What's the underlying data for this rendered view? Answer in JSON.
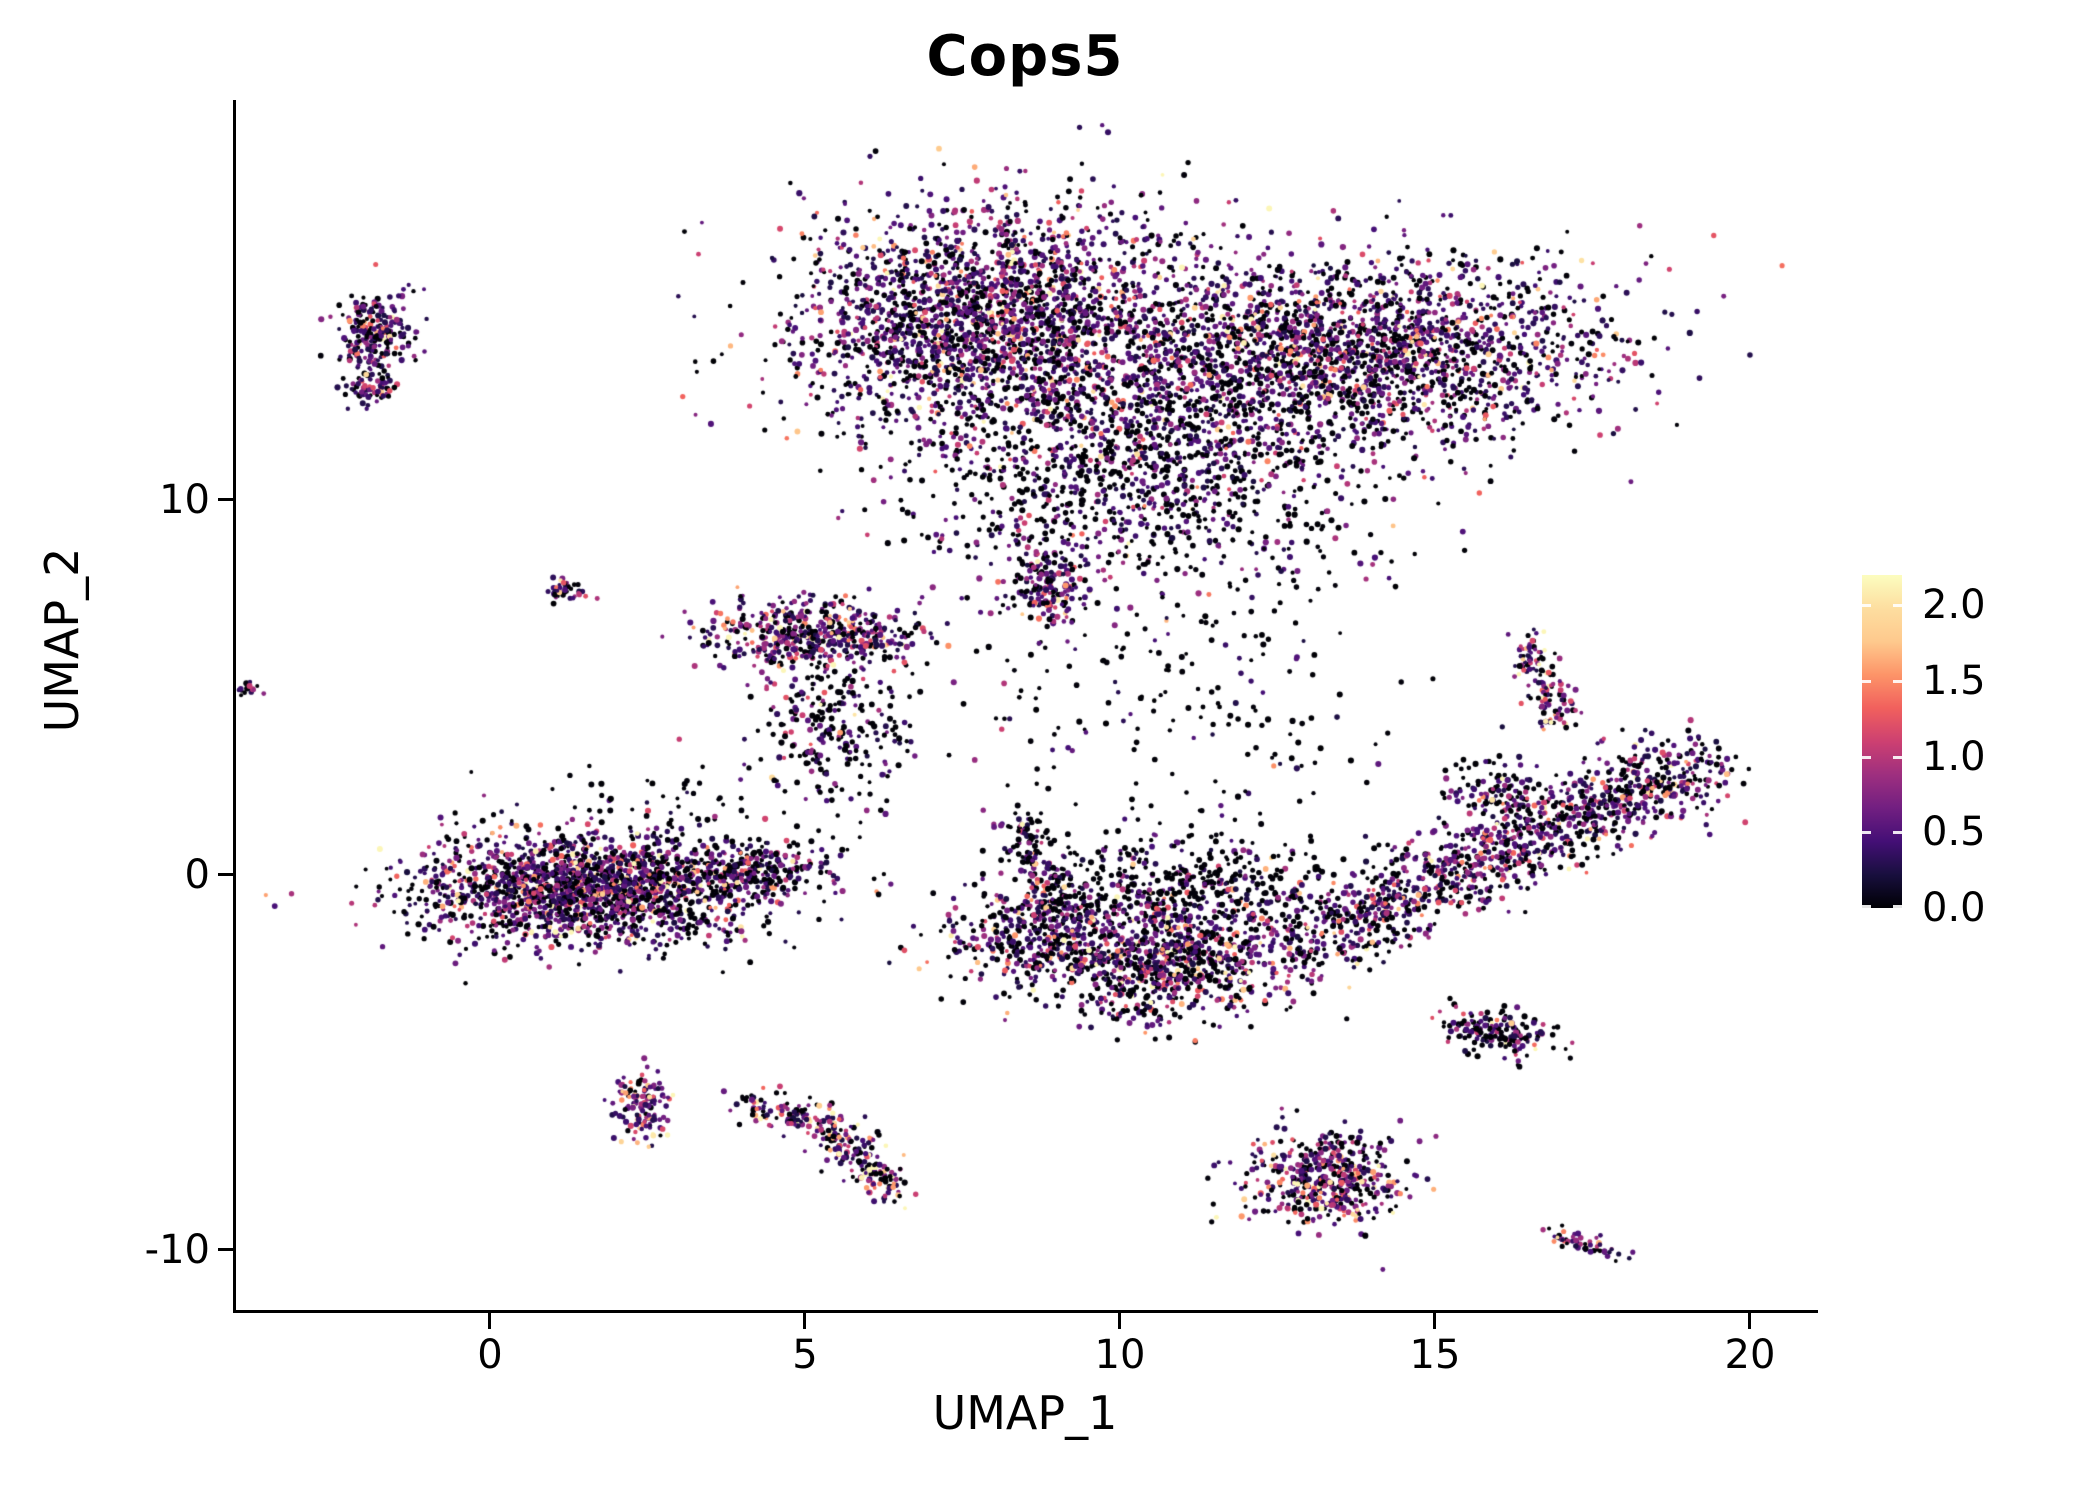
{
  "title": "Cops5",
  "axes": {
    "xlabel": "UMAP_1",
    "ylabel": "UMAP_2",
    "x_ticks": [
      "0",
      "5",
      "10",
      "15",
      "20"
    ],
    "y_ticks": [
      "10",
      "0",
      "-10"
    ]
  },
  "colorbar": {
    "tick_labels": [
      "2.0",
      "1.5",
      "1.0",
      "0.5",
      "0.0"
    ],
    "tick_values": [
      2.0,
      1.5,
      1.0,
      0.5,
      0.0
    ],
    "vmin": 0.0,
    "vmax": 2.2,
    "colormap": "magma",
    "stops": [
      {
        "t": 0.0,
        "color": "#000004"
      },
      {
        "t": 0.1,
        "color": "#180f3e"
      },
      {
        "t": 0.2,
        "color": "#440f76"
      },
      {
        "t": 0.3,
        "color": "#721f81"
      },
      {
        "t": 0.4,
        "color": "#9e2f7f"
      },
      {
        "t": 0.5,
        "color": "#cd4071"
      },
      {
        "t": 0.6,
        "color": "#f1605d"
      },
      {
        "t": 0.7,
        "color": "#fd9468"
      },
      {
        "t": 0.8,
        "color": "#fec98d"
      },
      {
        "t": 0.9,
        "color": "#fddea0"
      },
      {
        "t": 1.0,
        "color": "#fcfdbf"
      }
    ]
  },
  "chart_data": {
    "type": "scatter",
    "title": "Cops5",
    "xlabel": "UMAP_1",
    "ylabel": "UMAP_2",
    "x_tick_values": [
      0,
      5,
      10,
      15,
      20
    ],
    "y_tick_values": [
      10,
      0,
      -10
    ],
    "xlim": [
      -4.05,
      21.05
    ],
    "ylim": [
      -11.6,
      20.67
    ],
    "legend_position": "right",
    "grid": false,
    "color_variable": "Cops5 expression",
    "color_range": [
      0.0,
      2.0
    ],
    "seed": 7,
    "point_radius_px": [
      1.9,
      3.1
    ],
    "clusters": [
      {
        "name": "top-left-lobe",
        "cx": 8.0,
        "cy": 14.8,
        "sx": 1.55,
        "sy": 1.55,
        "n": 2400,
        "p0": 0.32,
        "vscale": 0.85
      },
      {
        "name": "top-right-lobe",
        "cx": 14.0,
        "cy": 14.0,
        "sx": 1.9,
        "sy": 1.25,
        "n": 2000,
        "p0": 0.35,
        "vscale": 0.85
      },
      {
        "name": "top-mid-bridge",
        "cx": 11.2,
        "cy": 12.8,
        "sx": 1.1,
        "sy": 1.3,
        "n": 500,
        "p0": 0.45,
        "vscale": 0.7
      },
      {
        "name": "top-bottom-spray",
        "cx": 10.2,
        "cy": 10.4,
        "sx": 1.9,
        "sy": 1.4,
        "n": 900,
        "p0": 0.55,
        "vscale": 0.7
      },
      {
        "name": "top-notch",
        "cx": 8.9,
        "cy": 7.7,
        "sx": 0.3,
        "sy": 0.55,
        "n": 170,
        "p0": 0.3,
        "vscale": 0.9
      },
      {
        "name": "left-upper-blob-a",
        "cx": -1.85,
        "cy": 14.4,
        "sx": 0.3,
        "sy": 0.52,
        "n": 240,
        "p0": 0.28,
        "vscale": 0.8
      },
      {
        "name": "left-upper-blob-b",
        "cx": -1.9,
        "cy": 13.0,
        "sx": 0.2,
        "sy": 0.22,
        "n": 70,
        "p0": 0.3,
        "vscale": 0.8
      },
      {
        "name": "far-left-dot",
        "cx": -3.85,
        "cy": 4.95,
        "sx": 0.1,
        "sy": 0.13,
        "n": 14,
        "p0": 0.4,
        "vscale": 0.8
      },
      {
        "name": "small-left-blob",
        "cx": 1.2,
        "cy": 7.6,
        "sx": 0.15,
        "sy": 0.15,
        "n": 42,
        "p0": 0.3,
        "vscale": 0.9
      },
      {
        "name": "mid-left-dense",
        "cx": 5.1,
        "cy": 6.4,
        "sx": 0.8,
        "sy": 0.45,
        "n": 520,
        "p0": 0.26,
        "vscale": 1.05
      },
      {
        "name": "mid-left-spray",
        "cx": 5.4,
        "cy": 3.9,
        "sx": 0.6,
        "sy": 1.05,
        "n": 260,
        "p0": 0.6,
        "vscale": 0.7
      },
      {
        "name": "left-main",
        "cx": 1.55,
        "cy": -0.4,
        "sx": 1.35,
        "sy": 0.7,
        "n": 1900,
        "p0": 0.35,
        "vscale": 0.92
      },
      {
        "name": "left-main-tail",
        "cx": 4.1,
        "cy": 0.1,
        "sx": 0.7,
        "sy": 0.35,
        "n": 260,
        "p0": 0.5,
        "vscale": 0.7
      },
      {
        "name": "left-main-halo",
        "cx": 2.6,
        "cy": 1.6,
        "sx": 1.1,
        "sy": 0.7,
        "n": 70,
        "p0": 0.75,
        "vscale": 0.5
      },
      {
        "name": "bottom-left-blob",
        "cx": 2.4,
        "cy": -6.1,
        "sx": 0.22,
        "sy": 0.5,
        "n": 140,
        "p0": 0.15,
        "vscale": 1.3
      },
      {
        "name": "bottom-arc",
        "path": [
          [
            4.1,
            -6.1
          ],
          [
            5.3,
            -6.6
          ],
          [
            5.9,
            -7.5
          ],
          [
            6.3,
            -8.5
          ]
        ],
        "width": 0.22,
        "n": 270,
        "p0": 0.3,
        "vscale": 1.15
      },
      {
        "name": "mid-right-west",
        "cx": 8.8,
        "cy": -1.6,
        "sx": 0.75,
        "sy": 0.8,
        "n": 520,
        "p0": 0.38,
        "vscale": 0.9
      },
      {
        "name": "mid-right-spike",
        "path": [
          [
            8.35,
            1.6
          ],
          [
            8.6,
            0.5
          ],
          [
            9.1,
            -0.5
          ]
        ],
        "width": 0.2,
        "n": 120,
        "p0": 0.45,
        "vscale": 0.8
      },
      {
        "name": "mid-right-core",
        "cx": 10.8,
        "cy": -2.3,
        "sx": 0.85,
        "sy": 0.8,
        "n": 850,
        "p0": 0.35,
        "vscale": 0.95
      },
      {
        "name": "mid-right-sparse",
        "cx": 11.3,
        "cy": -0.1,
        "sx": 1.1,
        "sy": 0.6,
        "n": 380,
        "p0": 0.68,
        "vscale": 0.55
      },
      {
        "name": "right-band",
        "path": [
          [
            12.6,
            -2.0
          ],
          [
            14.3,
            -0.7
          ],
          [
            15.9,
            0.5
          ],
          [
            17.5,
            1.7
          ],
          [
            19.2,
            3.0
          ]
        ],
        "width": 0.5,
        "n": 1250,
        "p0": 0.36,
        "vscale": 0.9
      },
      {
        "name": "right-band-upper",
        "cx": 16.0,
        "cy": 2.2,
        "sx": 0.5,
        "sy": 0.4,
        "n": 120,
        "p0": 0.45,
        "vscale": 0.8
      },
      {
        "name": "right-diag",
        "path": [
          [
            16.35,
            6.35
          ],
          [
            16.75,
            5.2
          ],
          [
            17.0,
            3.8
          ]
        ],
        "width": 0.18,
        "n": 130,
        "p0": 0.3,
        "vscale": 1.0
      },
      {
        "name": "right-small-blob",
        "cx": 16.0,
        "cy": -4.2,
        "sx": 0.5,
        "sy": 0.3,
        "angle": -20,
        "n": 170,
        "p0": 0.45,
        "vscale": 0.85
      },
      {
        "name": "bottom-center",
        "cx": 13.2,
        "cy": -8.1,
        "sx": 0.65,
        "sy": 0.6,
        "n": 470,
        "p0": 0.3,
        "vscale": 1.05
      },
      {
        "name": "bottom-right-tiny",
        "path": [
          [
            16.9,
            -9.6
          ],
          [
            17.8,
            -10.1
          ]
        ],
        "width": 0.12,
        "n": 55,
        "p0": 0.35,
        "vscale": 0.95
      },
      {
        "name": "central-sparse",
        "cx": 10.8,
        "cy": 4.8,
        "sx": 1.7,
        "sy": 2.6,
        "n": 240,
        "p0": 0.8,
        "vscale": 0.5
      }
    ]
  }
}
